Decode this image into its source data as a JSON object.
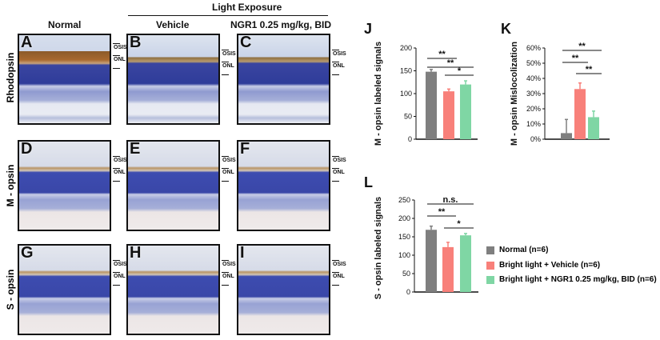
{
  "header": {
    "light_exposure": "Light Exposure",
    "normal": "Normal",
    "vehicle": "Vehicle",
    "ngr1": "NGR1 0.25 mg/kg, BID"
  },
  "rows": [
    "Rhodopsin",
    "M - opsin",
    "S - opsin"
  ],
  "panels": [
    "A",
    "B",
    "C",
    "D",
    "E",
    "F",
    "G",
    "H",
    "I"
  ],
  "layers": {
    "osis": "OSIS",
    "onl": "ONL"
  },
  "colors": {
    "normal": "#7f7f7f",
    "vehicle": "#f8807a",
    "ngr1": "#7fd6a4"
  },
  "legend": [
    "Normal (n=6)",
    "Bright light + Vehicle (n=6)",
    "Bright light + NGR1 0.25 mg/kg, BID (n=6)"
  ],
  "chart_data": [
    {
      "panel": "J",
      "type": "bar",
      "ylabel": "M - opsin labeled signals",
      "ylim": [
        0,
        200
      ],
      "yticks": [
        "0",
        "50",
        "100",
        "150",
        "200"
      ],
      "values": [
        148,
        105,
        120
      ],
      "errors": [
        5,
        5,
        8
      ],
      "significance": [
        {
          "pair": [
            0,
            1
          ],
          "label": "**"
        },
        {
          "pair": [
            1,
            2
          ],
          "label": "*"
        },
        {
          "pair": [
            0,
            2
          ],
          "label": "**"
        }
      ]
    },
    {
      "panel": "K",
      "type": "bar",
      "ylabel": "M - opsin Mislocolization",
      "ylim": [
        0,
        60
      ],
      "yticks": [
        "0%",
        "10%",
        "20%",
        "30%",
        "40%",
        "50%",
        "60%"
      ],
      "values": [
        4,
        33,
        14.5
      ],
      "errors": [
        9,
        4,
        4
      ],
      "significance": [
        {
          "pair": [
            0,
            1
          ],
          "label": "**"
        },
        {
          "pair": [
            1,
            2
          ],
          "label": "**"
        },
        {
          "pair": [
            0,
            2
          ],
          "label": "**"
        }
      ]
    },
    {
      "panel": "L",
      "type": "bar",
      "ylabel": "S - opsin labeled signals",
      "ylim": [
        0,
        250
      ],
      "yticks": [
        "0",
        "50",
        "100",
        "150",
        "200",
        "250"
      ],
      "values": [
        169,
        122,
        154
      ],
      "errors": [
        10,
        13,
        5
      ],
      "significance": [
        {
          "pair": [
            0,
            1
          ],
          "label": "**"
        },
        {
          "pair": [
            1,
            2
          ],
          "label": "*"
        },
        {
          "pair": [
            0,
            2
          ],
          "label": "n.s."
        }
      ]
    }
  ]
}
